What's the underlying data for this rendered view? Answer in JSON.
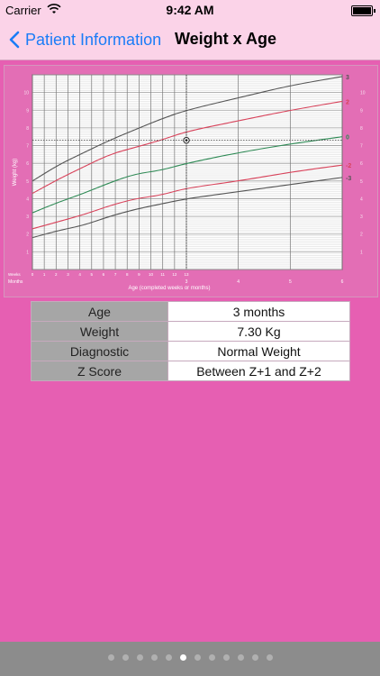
{
  "status": {
    "carrier": "Carrier",
    "time": "9:42 AM"
  },
  "nav": {
    "back_label": "Patient Information",
    "title": "Weight x Age"
  },
  "chart_data": {
    "type": "line",
    "xlabel": "Age (completed weeks or months)",
    "ylabel": "Weight (kg)",
    "row_labels": [
      "Weeks",
      "Months"
    ],
    "x_week_ticks": [
      "0",
      "1",
      "2",
      "3",
      "4",
      "5",
      "6",
      "7",
      "8",
      "9",
      "10",
      "11",
      "12",
      "13"
    ],
    "x_month_ticks": [
      "3",
      "4",
      "5",
      "6"
    ],
    "y_ticks": [
      "1",
      "2",
      "3",
      "4",
      "5",
      "6",
      "7",
      "8",
      "9",
      "10"
    ],
    "xlim_months": [
      0,
      6
    ],
    "ylim": [
      0,
      11
    ],
    "grid": true,
    "series": [
      {
        "name": "3",
        "color": "#555555",
        "points": [
          [
            0,
            5.0
          ],
          [
            0.5,
            5.9
          ],
          [
            1,
            6.6
          ],
          [
            1.5,
            7.3
          ],
          [
            2,
            7.9
          ],
          [
            2.5,
            8.5
          ],
          [
            3,
            9.0
          ],
          [
            4,
            9.7
          ],
          [
            5,
            10.4
          ],
          [
            6,
            10.9
          ]
        ]
      },
      {
        "name": "2",
        "color": "#d8425a",
        "points": [
          [
            0,
            4.3
          ],
          [
            0.5,
            5.1
          ],
          [
            1,
            5.8
          ],
          [
            1.5,
            6.5
          ],
          [
            2,
            6.9
          ],
          [
            2.5,
            7.3
          ],
          [
            3,
            7.8
          ],
          [
            4,
            8.4
          ],
          [
            5,
            9.0
          ],
          [
            6,
            9.5
          ]
        ]
      },
      {
        "name": "0",
        "color": "#2e8a55",
        "points": [
          [
            0,
            3.2
          ],
          [
            0.5,
            3.8
          ],
          [
            1,
            4.3
          ],
          [
            1.5,
            4.9
          ],
          [
            2,
            5.4
          ],
          [
            2.5,
            5.6
          ],
          [
            3,
            6.0
          ],
          [
            4,
            6.6
          ],
          [
            5,
            7.1
          ],
          [
            6,
            7.5
          ]
        ]
      },
      {
        "name": "-2",
        "color": "#d8425a",
        "points": [
          [
            0,
            2.3
          ],
          [
            0.5,
            2.7
          ],
          [
            1,
            3.1
          ],
          [
            1.5,
            3.6
          ],
          [
            2,
            4.0
          ],
          [
            2.5,
            4.2
          ],
          [
            3,
            4.6
          ],
          [
            4,
            5.0
          ],
          [
            5,
            5.5
          ],
          [
            6,
            5.9
          ]
        ]
      },
      {
        "name": "-3",
        "color": "#555555",
        "points": [
          [
            0,
            1.8
          ],
          [
            0.5,
            2.2
          ],
          [
            1,
            2.5
          ],
          [
            1.5,
            3.0
          ],
          [
            2,
            3.4
          ],
          [
            2.5,
            3.7
          ],
          [
            3,
            4.0
          ],
          [
            4,
            4.4
          ],
          [
            5,
            4.8
          ],
          [
            6,
            5.2
          ]
        ]
      }
    ],
    "marker": {
      "x_months": 3,
      "y": 7.3
    }
  },
  "table": {
    "rows": [
      {
        "key": "Age",
        "value": "3 months"
      },
      {
        "key": "Weight",
        "value": "7.30 Kg"
      },
      {
        "key": "Diagnostic",
        "value": "Normal Weight"
      },
      {
        "key": "Z Score",
        "value": "Between Z+1 and Z+2"
      }
    ]
  },
  "pager": {
    "count": 12,
    "active_index": 5
  }
}
